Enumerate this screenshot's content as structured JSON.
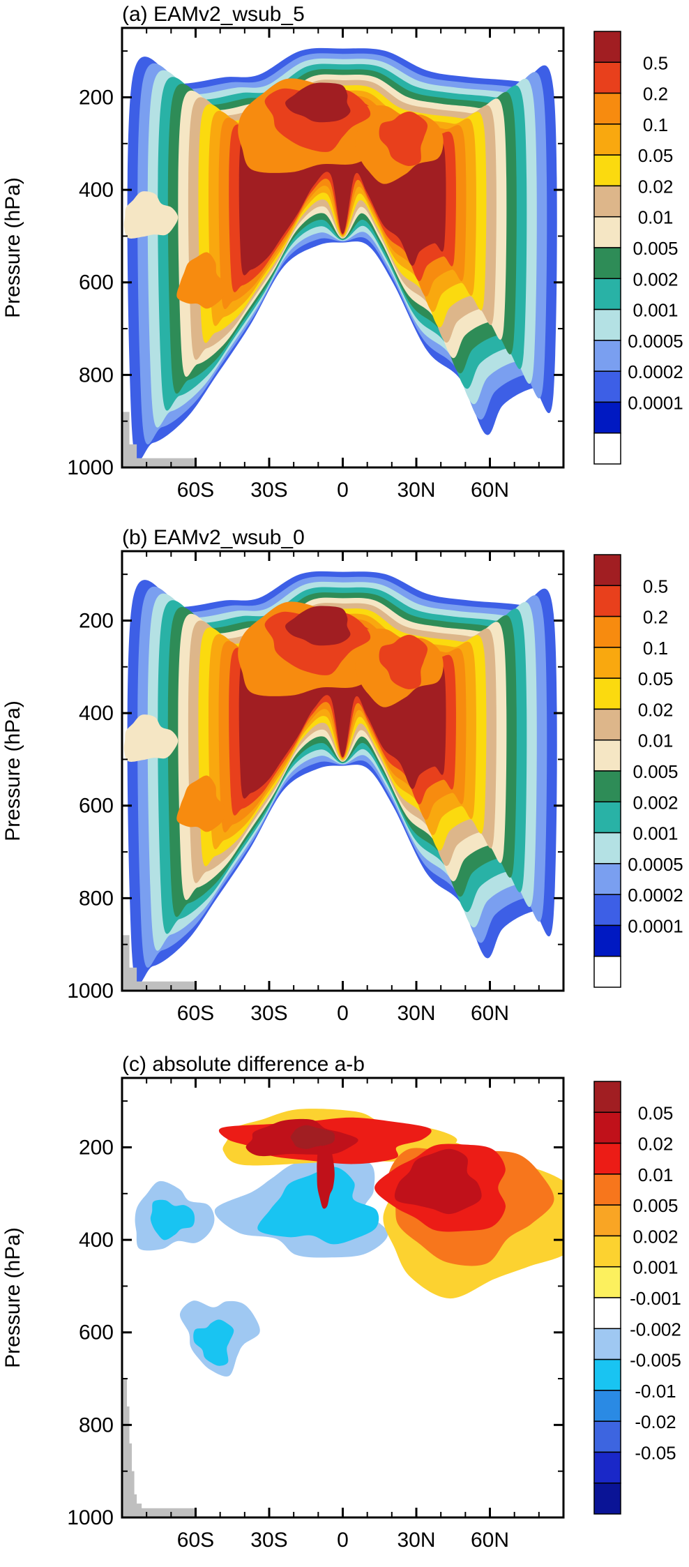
{
  "chart_data": [
    {
      "type": "heatmap",
      "title": "(a) EAMv2_wsub_5",
      "xlabel": "",
      "ylabel": "Pressure (hPa)",
      "xlim": [
        -90,
        90
      ],
      "ylim": [
        1000,
        50
      ],
      "x_ticks": [
        "60S",
        "30S",
        "0",
        "30N",
        "60N"
      ],
      "x_tick_values": [
        -60,
        -30,
        0,
        30,
        60
      ],
      "y_ticks": [
        "200",
        "400",
        "600",
        "800",
        "1000"
      ],
      "y_tick_values": [
        200,
        400,
        600,
        800,
        1000
      ],
      "legend_levels": [
        "0.5",
        "0.2",
        "0.1",
        "0.05",
        "0.02",
        "0.01",
        "0.005",
        "0.002",
        "0.001",
        "0.0005",
        "0.0002",
        "0.0001"
      ],
      "legend_colors": [
        "#a11e22",
        "#e8401c",
        "#f78b0f",
        "#f9a80f",
        "#fbda0f",
        "#ddb68a",
        "#f5e6c4",
        "#2e8c57",
        "#29b2a6",
        "#b4e1e4",
        "#7a9ff0",
        "#3d5fe6",
        "#0019c2",
        "#ffffff"
      ],
      "surface_lat": [
        -90,
        -87,
        -84,
        -82,
        -60
      ],
      "surface_p": [
        880,
        950,
        980,
        980,
        980
      ]
    },
    {
      "type": "heatmap",
      "title": "(b) EAMv2_wsub_0",
      "xlabel": "",
      "ylabel": "Pressure (hPa)",
      "xlim": [
        -90,
        90
      ],
      "ylim": [
        1000,
        50
      ],
      "x_ticks": [
        "60S",
        "30S",
        "0",
        "30N",
        "60N"
      ],
      "x_tick_values": [
        -60,
        -30,
        0,
        30,
        60
      ],
      "y_ticks": [
        "200",
        "400",
        "600",
        "800",
        "1000"
      ],
      "y_tick_values": [
        200,
        400,
        600,
        800,
        1000
      ],
      "legend_levels": [
        "0.5",
        "0.2",
        "0.1",
        "0.05",
        "0.02",
        "0.01",
        "0.005",
        "0.002",
        "0.001",
        "0.0005",
        "0.0002",
        "0.0001"
      ],
      "legend_colors": [
        "#a11e22",
        "#e8401c",
        "#f78b0f",
        "#f9a80f",
        "#fbda0f",
        "#ddb68a",
        "#f5e6c4",
        "#2e8c57",
        "#29b2a6",
        "#b4e1e4",
        "#7a9ff0",
        "#3d5fe6",
        "#0019c2",
        "#ffffff"
      ],
      "surface_lat": [
        -90,
        -87,
        -84,
        -82,
        -60
      ],
      "surface_p": [
        880,
        950,
        980,
        980,
        980
      ]
    },
    {
      "type": "heatmap",
      "title": "(c) absolute difference a-b",
      "xlabel": "",
      "ylabel": "Pressure (hPa)",
      "xlim": [
        -90,
        90
      ],
      "ylim": [
        1000,
        50
      ],
      "x_ticks": [
        "60S",
        "30S",
        "0",
        "30N",
        "60N"
      ],
      "x_tick_values": [
        -60,
        -30,
        0,
        30,
        60
      ],
      "y_ticks": [
        "200",
        "400",
        "600",
        "800",
        "1000"
      ],
      "y_tick_values": [
        200,
        400,
        600,
        800,
        1000
      ],
      "legend_levels": [
        "0.05",
        "0.02",
        "0.01",
        "0.005",
        "0.002",
        "0.001",
        "-0.001",
        "-0.002",
        "-0.005",
        "-0.01",
        "-0.02",
        "-0.05"
      ],
      "legend_colors": [
        "#a11e22",
        "#c0111a",
        "#ec1c16",
        "#f7761c",
        "#f9a524",
        "#fcd230",
        "#fcf05e",
        "#ffffff",
        "#9fc8f2",
        "#19c4f2",
        "#2a8ae4",
        "#3d65e0",
        "#1a28c8",
        "#0a1496"
      ],
      "surface_lat": [
        -90,
        -88,
        -87,
        -86,
        -85,
        -84,
        -82,
        -60
      ],
      "surface_p": [
        700,
        760,
        840,
        900,
        950,
        970,
        980,
        980
      ]
    }
  ]
}
